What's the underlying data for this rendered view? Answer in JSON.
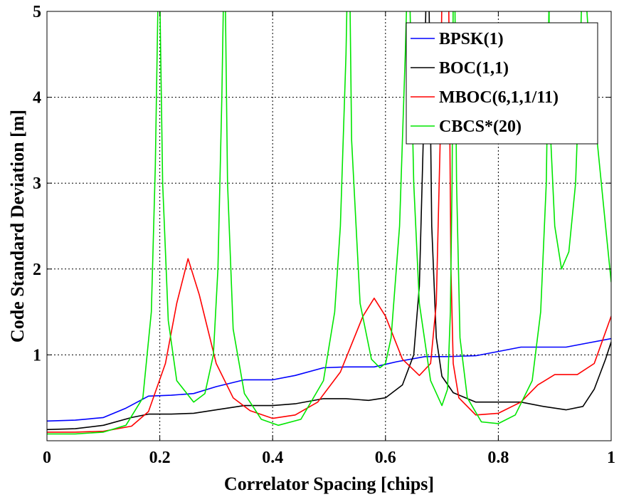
{
  "chart_data": {
    "type": "line",
    "title": "",
    "xlabel": "Correlator Spacing [chips]",
    "ylabel": "Code Standard Deviation [m]",
    "xlim": [
      0,
      1
    ],
    "ylim": [
      0,
      5
    ],
    "grid": true,
    "legend_position": "top-right",
    "x_ticks": [
      0,
      0.2,
      0.4,
      0.6,
      0.8,
      1
    ],
    "x_tick_labels": [
      "0",
      "0.2",
      "0.4",
      "0.6",
      "0.8",
      "1"
    ],
    "y_ticks": [
      1,
      2,
      3,
      4,
      5
    ],
    "y_tick_labels": [
      "1",
      "2",
      "3",
      "4",
      "5"
    ],
    "series": [
      {
        "name": "BPSK(1)",
        "color": "#0000ff",
        "points": [
          [
            0,
            0.23
          ],
          [
            0.05,
            0.24
          ],
          [
            0.1,
            0.27
          ],
          [
            0.14,
            0.38
          ],
          [
            0.18,
            0.52
          ],
          [
            0.22,
            0.53
          ],
          [
            0.26,
            0.55
          ],
          [
            0.3,
            0.63
          ],
          [
            0.35,
            0.71
          ],
          [
            0.4,
            0.71
          ],
          [
            0.44,
            0.76
          ],
          [
            0.49,
            0.85
          ],
          [
            0.53,
            0.86
          ],
          [
            0.58,
            0.86
          ],
          [
            0.62,
            0.92
          ],
          [
            0.67,
            0.98
          ],
          [
            0.71,
            0.98
          ],
          [
            0.76,
            0.99
          ],
          [
            0.8,
            1.04
          ],
          [
            0.84,
            1.09
          ],
          [
            0.88,
            1.09
          ],
          [
            0.92,
            1.09
          ],
          [
            0.96,
            1.14
          ],
          [
            1,
            1.19
          ]
        ]
      },
      {
        "name": "BOC(1,1)",
        "color": "#000000",
        "points": [
          [
            0,
            0.13
          ],
          [
            0.05,
            0.14
          ],
          [
            0.1,
            0.18
          ],
          [
            0.15,
            0.27
          ],
          [
            0.18,
            0.31
          ],
          [
            0.22,
            0.31
          ],
          [
            0.26,
            0.32
          ],
          [
            0.3,
            0.36
          ],
          [
            0.35,
            0.41
          ],
          [
            0.4,
            0.41
          ],
          [
            0.44,
            0.43
          ],
          [
            0.49,
            0.49
          ],
          [
            0.53,
            0.49
          ],
          [
            0.57,
            0.47
          ],
          [
            0.6,
            0.5
          ],
          [
            0.63,
            0.65
          ],
          [
            0.65,
            1.0
          ],
          [
            0.66,
            1.8
          ],
          [
            0.667,
            3.5
          ],
          [
            0.672,
            5.2
          ],
          [
            0.677,
            5.2
          ],
          [
            0.682,
            2.5
          ],
          [
            0.69,
            1.2
          ],
          [
            0.7,
            0.75
          ],
          [
            0.72,
            0.56
          ],
          [
            0.76,
            0.45
          ],
          [
            0.8,
            0.45
          ],
          [
            0.84,
            0.45
          ],
          [
            0.88,
            0.4
          ],
          [
            0.92,
            0.36
          ],
          [
            0.95,
            0.4
          ],
          [
            0.97,
            0.6
          ],
          [
            0.99,
            0.95
          ],
          [
            1,
            1.15
          ]
        ]
      },
      {
        "name": "MBOC(6,1,1/11)",
        "color": "#ff0000",
        "points": [
          [
            0,
            0.1
          ],
          [
            0.05,
            0.1
          ],
          [
            0.1,
            0.11
          ],
          [
            0.15,
            0.17
          ],
          [
            0.18,
            0.34
          ],
          [
            0.21,
            0.9
          ],
          [
            0.23,
            1.6
          ],
          [
            0.25,
            2.12
          ],
          [
            0.27,
            1.7
          ],
          [
            0.3,
            0.9
          ],
          [
            0.33,
            0.5
          ],
          [
            0.36,
            0.35
          ],
          [
            0.4,
            0.26
          ],
          [
            0.44,
            0.3
          ],
          [
            0.48,
            0.45
          ],
          [
            0.52,
            0.8
          ],
          [
            0.56,
            1.45
          ],
          [
            0.58,
            1.66
          ],
          [
            0.6,
            1.45
          ],
          [
            0.63,
            0.95
          ],
          [
            0.66,
            0.76
          ],
          [
            0.68,
            0.9
          ],
          [
            0.69,
            1.6
          ],
          [
            0.697,
            3.5
          ],
          [
            0.7,
            5.2
          ],
          [
            0.712,
            5.2
          ],
          [
            0.716,
            2.0
          ],
          [
            0.72,
            0.9
          ],
          [
            0.73,
            0.5
          ],
          [
            0.76,
            0.3
          ],
          [
            0.8,
            0.32
          ],
          [
            0.84,
            0.45
          ],
          [
            0.87,
            0.65
          ],
          [
            0.9,
            0.77
          ],
          [
            0.94,
            0.77
          ],
          [
            0.97,
            0.9
          ],
          [
            1,
            1.45
          ]
        ]
      },
      {
        "name": "CBCS*(20)",
        "color": "#00e600",
        "points": [
          [
            0,
            0.08
          ],
          [
            0.05,
            0.08
          ],
          [
            0.1,
            0.1
          ],
          [
            0.14,
            0.18
          ],
          [
            0.17,
            0.5
          ],
          [
            0.185,
            1.5
          ],
          [
            0.192,
            3.2
          ],
          [
            0.197,
            5.2
          ],
          [
            0.2,
            5.2
          ],
          [
            0.205,
            3.0
          ],
          [
            0.215,
            1.4
          ],
          [
            0.23,
            0.7
          ],
          [
            0.26,
            0.45
          ],
          [
            0.28,
            0.55
          ],
          [
            0.295,
            1.0
          ],
          [
            0.303,
            2.0
          ],
          [
            0.31,
            4.0
          ],
          [
            0.313,
            5.2
          ],
          [
            0.316,
            5.2
          ],
          [
            0.32,
            3.0
          ],
          [
            0.33,
            1.3
          ],
          [
            0.35,
            0.55
          ],
          [
            0.38,
            0.25
          ],
          [
            0.41,
            0.18
          ],
          [
            0.45,
            0.25
          ],
          [
            0.49,
            0.7
          ],
          [
            0.51,
            1.5
          ],
          [
            0.52,
            2.5
          ],
          [
            0.53,
            4.5
          ],
          [
            0.532,
            5.2
          ],
          [
            0.537,
            5.2
          ],
          [
            0.54,
            3.5
          ],
          [
            0.555,
            1.6
          ],
          [
            0.575,
            0.95
          ],
          [
            0.59,
            0.85
          ],
          [
            0.6,
            0.9
          ],
          [
            0.61,
            1.2
          ],
          [
            0.625,
            2.5
          ],
          [
            0.635,
            4.5
          ],
          [
            0.638,
            5.2
          ],
          [
            0.643,
            5.2
          ],
          [
            0.65,
            3.0
          ],
          [
            0.66,
            1.6
          ],
          [
            0.68,
            0.7
          ],
          [
            0.7,
            0.41
          ],
          [
            0.71,
            0.6
          ],
          [
            0.715,
            1.5
          ],
          [
            0.718,
            3.0
          ],
          [
            0.72,
            5.2
          ],
          [
            0.723,
            5.2
          ],
          [
            0.726,
            3.0
          ],
          [
            0.732,
            1.2
          ],
          [
            0.745,
            0.5
          ],
          [
            0.77,
            0.22
          ],
          [
            0.8,
            0.2
          ],
          [
            0.83,
            0.3
          ],
          [
            0.86,
            0.7
          ],
          [
            0.875,
            1.5
          ],
          [
            0.885,
            3.0
          ],
          [
            0.89,
            5.2
          ],
          [
            0.89,
            4.7
          ],
          [
            0.893,
            3.5
          ],
          [
            0.9,
            2.5
          ],
          [
            0.912,
            2.0
          ],
          [
            0.925,
            2.2
          ],
          [
            0.937,
            3.0
          ],
          [
            0.945,
            4.5
          ],
          [
            0.948,
            5.2
          ],
          [
            0.955,
            5.2
          ],
          [
            0.962,
            4.5
          ],
          [
            0.975,
            3.5
          ],
          [
            0.99,
            2.5
          ],
          [
            1,
            1.85
          ]
        ]
      }
    ]
  }
}
